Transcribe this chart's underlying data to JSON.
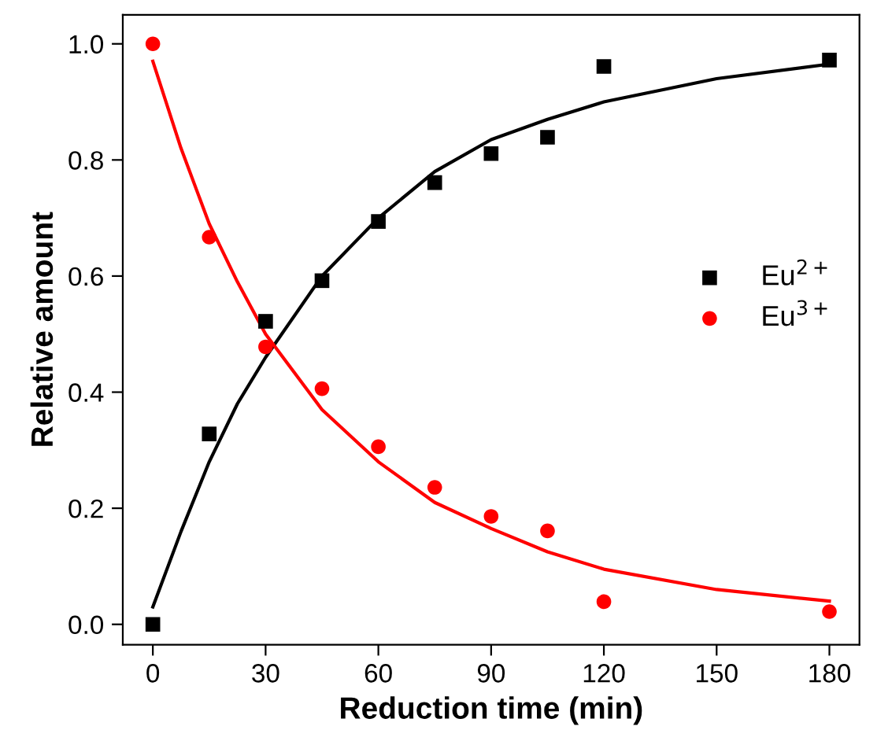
{
  "chart_data": {
    "type": "scatter",
    "xlabel": "Reduction time (min)",
    "ylabel": "Relative amount",
    "grid": false,
    "legend": "right",
    "x": [
      0,
      15,
      30,
      45,
      60,
      75,
      90,
      105,
      120,
      180
    ],
    "series": [
      {
        "name": "Eu$^{2+}$",
        "color": "#000000",
        "marker": "square",
        "values": [
          0.0,
          0.328,
          0.522,
          0.592,
          0.694,
          0.761,
          0.811,
          0.839,
          0.961,
          0.972
        ]
      },
      {
        "name": "Eu$^{3+}$",
        "color": "#ff0000",
        "marker": "circle",
        "values": [
          1.0,
          0.667,
          0.478,
          0.406,
          0.306,
          0.236,
          0.186,
          0.161,
          0.039,
          0.022
        ]
      },
      {
        "type": "line",
        "marker": "none",
        "color": "#000000",
        "x": [
          0,
          7.5,
          15,
          22.5,
          30,
          45,
          60,
          75,
          90,
          105,
          120,
          150,
          180
        ],
        "values": [
          0.03,
          0.16,
          0.28,
          0.38,
          0.46,
          0.6,
          0.7,
          0.78,
          0.835,
          0.87,
          0.9,
          0.94,
          0.965
        ]
      },
      {
        "type": "line",
        "marker": "none",
        "color": "#ff0000",
        "x": [
          0,
          7.5,
          15,
          22.5,
          30,
          45,
          60,
          75,
          90,
          105,
          120,
          150,
          180
        ],
        "values": [
          0.97,
          0.82,
          0.69,
          0.59,
          0.5,
          0.37,
          0.28,
          0.21,
          0.165,
          0.125,
          0.095,
          0.06,
          0.04
        ]
      }
    ],
    "xlim": [
      -8,
      188
    ],
    "xticks": [
      0,
      30,
      60,
      90,
      120,
      150,
      180
    ],
    "ylim": [
      -0.035,
      1.05
    ],
    "yticks": [
      {
        "value": 0,
        "label": "0.0"
      },
      {
        "value": 0.2,
        "label": "0.2"
      },
      {
        "value": 0.4,
        "label": "0.4"
      },
      {
        "value": 0.6,
        "label": "0.6"
      },
      {
        "value": 0.8,
        "label": "0.8"
      },
      {
        "value": 1.0,
        "label": "1.0"
      }
    ]
  }
}
